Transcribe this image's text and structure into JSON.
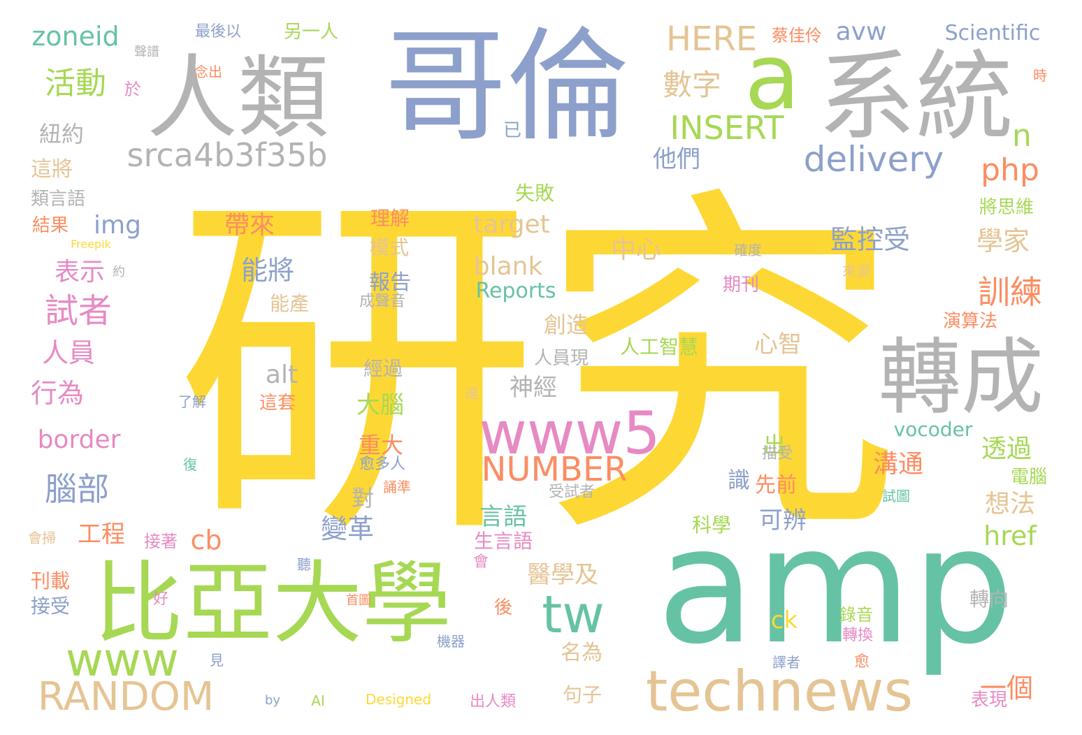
{
  "palette": {
    "yellow": "#FDD835",
    "green": "#66C2A5",
    "lime": "#A6D854",
    "blue": "#8DA0CB",
    "gray": "#B3B3B3",
    "orange": "#FC8D62",
    "pink": "#E78AC3",
    "tan": "#E5C494"
  },
  "words": [
    {
      "text": "研究",
      "color": "yellow"
    },
    {
      "text": "amp",
      "color": "green"
    },
    {
      "text": "哥倫",
      "color": "blue"
    },
    {
      "text": "人類",
      "color": "gray"
    },
    {
      "text": "系統",
      "color": "gray"
    },
    {
      "text": "a",
      "color": "lime"
    },
    {
      "text": "比亞大學",
      "color": "lime"
    },
    {
      "text": "technews",
      "color": "tan"
    },
    {
      "text": "轉成",
      "color": "gray"
    },
    {
      "text": "www5",
      "color": "pink"
    },
    {
      "text": "tw",
      "color": "green"
    },
    {
      "text": "www",
      "color": "lime"
    },
    {
      "text": "RANDOM",
      "color": "tan"
    },
    {
      "text": "srca4b3f35b",
      "color": "gray"
    },
    {
      "text": "delivery",
      "color": "blue"
    },
    {
      "text": "NUMBER",
      "color": "orange"
    },
    {
      "text": "INSERT",
      "color": "lime"
    },
    {
      "text": "HERE",
      "color": "tan"
    },
    {
      "text": "zoneid",
      "color": "green"
    },
    {
      "text": "php",
      "color": "orange"
    },
    {
      "text": "Scientific",
      "color": "blue"
    },
    {
      "text": "活動",
      "color": "lime"
    },
    {
      "text": "數字",
      "color": "tan"
    },
    {
      "text": "avw",
      "color": "blue"
    },
    {
      "text": "n",
      "color": "lime"
    },
    {
      "text": "紐約",
      "color": "gray"
    },
    {
      "text": "他們",
      "color": "blue"
    },
    {
      "text": "這將",
      "color": "tan"
    },
    {
      "text": "img",
      "color": "blue"
    },
    {
      "text": "target",
      "color": "tan"
    },
    {
      "text": "帶來",
      "color": "orange"
    },
    {
      "text": "監控受",
      "color": "blue"
    },
    {
      "text": "學家",
      "color": "tan"
    },
    {
      "text": "訓練",
      "color": "orange"
    },
    {
      "text": "中心",
      "color": "tan"
    },
    {
      "text": "blank",
      "color": "tan"
    },
    {
      "text": "Reports",
      "color": "green"
    },
    {
      "text": "試者",
      "color": "pink"
    },
    {
      "text": "表示",
      "color": "pink"
    },
    {
      "text": "能將",
      "color": "blue"
    },
    {
      "text": "腦部",
      "color": "blue"
    },
    {
      "text": "人員",
      "color": "pink"
    },
    {
      "text": "行為",
      "color": "pink"
    },
    {
      "text": "border",
      "color": "pink"
    },
    {
      "text": "cb",
      "color": "orange"
    },
    {
      "text": "工程",
      "color": "orange"
    },
    {
      "text": "alt",
      "color": "gray"
    },
    {
      "text": "創造",
      "color": "tan"
    },
    {
      "text": "心智",
      "color": "tan"
    },
    {
      "text": "人工智慧",
      "color": "lime"
    },
    {
      "text": "神經",
      "color": "gray"
    },
    {
      "text": "大腦",
      "color": "lime"
    },
    {
      "text": "重大",
      "color": "orange"
    },
    {
      "text": "變革",
      "color": "blue"
    },
    {
      "text": "言語",
      "color": "green"
    },
    {
      "text": "醫學及",
      "color": "tan"
    },
    {
      "text": "溝通",
      "color": "orange"
    },
    {
      "text": "可辨",
      "color": "blue"
    },
    {
      "text": "想法",
      "color": "tan"
    },
    {
      "text": "透過",
      "color": "lime"
    },
    {
      "text": "vocoder",
      "color": "green"
    },
    {
      "text": "href",
      "color": "lime"
    },
    {
      "text": "ck",
      "color": "yellow"
    },
    {
      "text": "一個",
      "color": "orange"
    },
    {
      "text": "電腦",
      "color": "lime"
    },
    {
      "text": "名為",
      "color": "tan"
    },
    {
      "text": "轉向",
      "color": "gray"
    },
    {
      "text": "錄音",
      "color": "lime"
    },
    {
      "text": "句子",
      "color": "tan"
    },
    {
      "text": "表現",
      "color": "pink"
    },
    {
      "text": "刊載",
      "color": "orange"
    },
    {
      "text": "接受",
      "color": "blue"
    },
    {
      "text": "接著",
      "color": "pink"
    },
    {
      "text": "生言語",
      "color": "pink"
    },
    {
      "text": "科學",
      "color": "lime"
    },
    {
      "text": "先前",
      "color": "orange"
    },
    {
      "text": "識",
      "color": "blue"
    },
    {
      "text": "對",
      "color": "gray"
    },
    {
      "text": "出",
      "color": "lime"
    },
    {
      "text": "最後以",
      "color": "blue"
    },
    {
      "text": "另一人",
      "color": "lime"
    },
    {
      "text": "蔡佳伶",
      "color": "orange"
    },
    {
      "text": "聲譜",
      "color": "gray"
    },
    {
      "text": "念出",
      "color": "orange"
    },
    {
      "text": "於",
      "color": "pink"
    },
    {
      "text": "已",
      "color": "blue"
    },
    {
      "text": "時",
      "color": "orange"
    },
    {
      "text": "類言語",
      "color": "gray"
    },
    {
      "text": "結果",
      "color": "orange"
    },
    {
      "text": "Freepik",
      "color": "yellow"
    },
    {
      "text": "約",
      "color": "gray"
    },
    {
      "text": "失敗",
      "color": "lime"
    },
    {
      "text": "理解",
      "color": "orange"
    },
    {
      "text": "模式",
      "color": "tan"
    },
    {
      "text": "報告",
      "color": "blue"
    },
    {
      "text": "能產",
      "color": "tan"
    },
    {
      "text": "成聲音",
      "color": "gray"
    },
    {
      "text": "將思維",
      "color": "lime"
    },
    {
      "text": "確度",
      "color": "gray"
    },
    {
      "text": "來源",
      "color": "tan"
    },
    {
      "text": "期刊",
      "color": "pink"
    },
    {
      "text": "演算法",
      "color": "orange"
    },
    {
      "text": "人員現",
      "color": "gray"
    },
    {
      "text": "經過",
      "color": "gray"
    },
    {
      "text": "這套",
      "color": "orange"
    },
    {
      "text": "了解",
      "color": "blue"
    },
    {
      "text": "達",
      "color": "tan"
    },
    {
      "text": "復",
      "color": "green"
    },
    {
      "text": "愈多人",
      "color": "blue"
    },
    {
      "text": "誦準",
      "color": "orange"
    },
    {
      "text": "描受",
      "color": "gray"
    },
    {
      "text": "受試者",
      "color": "gray"
    },
    {
      "text": "試圖",
      "color": "green"
    },
    {
      "text": "會掃",
      "color": "tan"
    },
    {
      "text": "聽",
      "color": "blue"
    },
    {
      "text": "會",
      "color": "pink"
    },
    {
      "text": "好",
      "color": "pink"
    },
    {
      "text": "首圖",
      "color": "orange"
    },
    {
      "text": "後",
      "color": "orange"
    },
    {
      "text": "轉換",
      "color": "pink"
    },
    {
      "text": "機器",
      "color": "blue"
    },
    {
      "text": "見",
      "color": "blue"
    },
    {
      "text": "譯者",
      "color": "blue"
    },
    {
      "text": "愈",
      "color": "orange"
    },
    {
      "text": "by",
      "color": "blue"
    },
    {
      "text": "AI",
      "color": "lime"
    },
    {
      "text": "Designed",
      "color": "yellow"
    },
    {
      "text": "出人類",
      "color": "pink"
    }
  ]
}
